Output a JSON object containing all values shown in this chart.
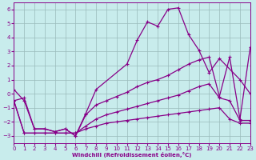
{
  "xlabel": "Windchill (Refroidissement éolien,°C)",
  "xlim": [
    0,
    23
  ],
  "ylim": [
    -3.5,
    6.5
  ],
  "xticks": [
    0,
    1,
    2,
    3,
    4,
    5,
    6,
    7,
    8,
    9,
    10,
    11,
    12,
    13,
    14,
    15,
    16,
    17,
    18,
    19,
    20,
    21,
    22,
    23
  ],
  "yticks": [
    -3,
    -2,
    -1,
    0,
    1,
    2,
    3,
    4,
    5,
    6
  ],
  "background_color": "#c8ecec",
  "line_color": "#880088",
  "grid_color": "#99bbbb",
  "series": [
    {
      "x": [
        0,
        1,
        2,
        3,
        4,
        5,
        6,
        7,
        8,
        11,
        12,
        13,
        14,
        15,
        16,
        17,
        18,
        19,
        20,
        22,
        23
      ],
      "y": [
        0.3,
        -0.5,
        -2.5,
        -2.5,
        -2.7,
        -2.5,
        -3.0,
        -1.4,
        0.3,
        2.1,
        3.8,
        5.1,
        4.8,
        6.0,
        6.1,
        4.2,
        3.1,
        1.5,
        2.5,
        1.0,
        0.0
      ],
      "marker": true
    },
    {
      "x": [
        0,
        1,
        2,
        3,
        4,
        5,
        6,
        7,
        8,
        9,
        10,
        11,
        12,
        13,
        14,
        15,
        16,
        17,
        18,
        19,
        20,
        21,
        22,
        23
      ],
      "y": [
        -0.5,
        -0.3,
        -2.5,
        -2.5,
        -2.7,
        -2.5,
        -3.0,
        -1.5,
        -0.8,
        -0.5,
        -0.2,
        0.1,
        0.5,
        0.8,
        1.0,
        1.3,
        1.7,
        2.1,
        2.4,
        2.6,
        -0.2,
        2.6,
        -1.8,
        3.3
      ],
      "marker": true
    },
    {
      "x": [
        0,
        1,
        2,
        3,
        4,
        5,
        6,
        7,
        8,
        9,
        10,
        11,
        12,
        13,
        14,
        15,
        16,
        17,
        18,
        19,
        20,
        21,
        22,
        23
      ],
      "y": [
        -0.5,
        -2.8,
        -2.8,
        -2.8,
        -2.8,
        -2.8,
        -2.8,
        -2.3,
        -1.8,
        -1.5,
        -1.3,
        -1.1,
        -0.9,
        -0.7,
        -0.5,
        -0.3,
        -0.1,
        0.2,
        0.5,
        0.7,
        -0.3,
        -0.5,
        -1.9,
        -1.9
      ],
      "marker": true
    },
    {
      "x": [
        0,
        1,
        2,
        3,
        4,
        5,
        6,
        7,
        8,
        9,
        10,
        11,
        12,
        13,
        14,
        15,
        16,
        17,
        18,
        19,
        20,
        21,
        22,
        23
      ],
      "y": [
        -0.5,
        -2.8,
        -2.8,
        -2.8,
        -2.8,
        -2.8,
        -2.8,
        -2.5,
        -2.3,
        -2.1,
        -2.0,
        -1.9,
        -1.8,
        -1.7,
        -1.6,
        -1.5,
        -1.4,
        -1.3,
        -1.2,
        -1.1,
        -1.0,
        -1.8,
        -2.1,
        -2.1
      ],
      "marker": true
    }
  ]
}
